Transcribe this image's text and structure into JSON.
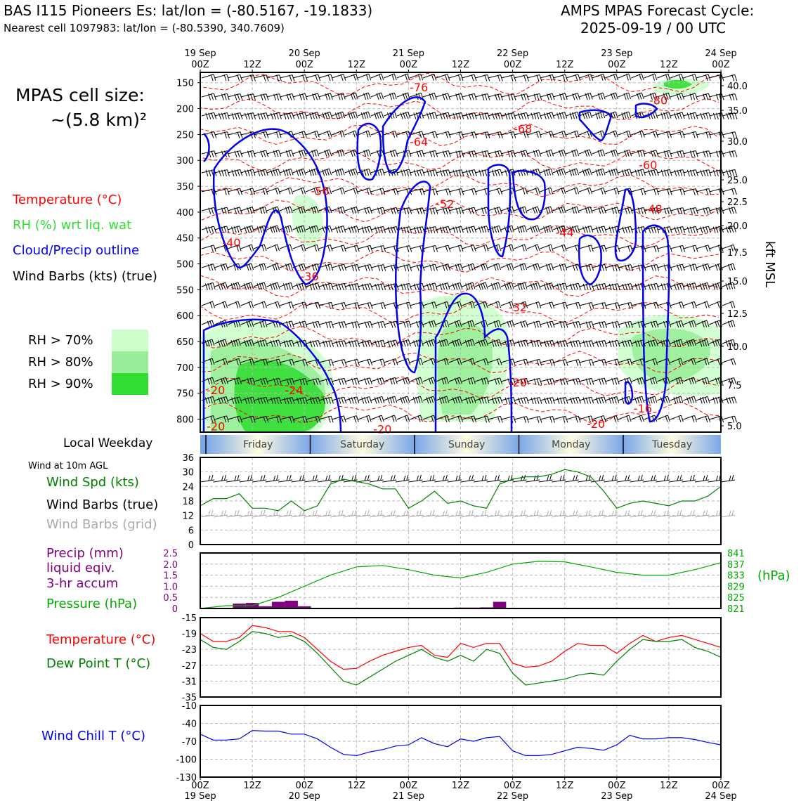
{
  "header": {
    "station": "BAS I115 Pioneers Es: lat/lon = (-80.5167, -19.1833)",
    "nearest": "Nearest cell 1097983: lat/lon = (-80.5390, 340.7609)",
    "cycle_title": "AMPS MPAS Forecast Cycle:",
    "cycle_time": "2025-09-19 / 00 UTC"
  },
  "left_legend": {
    "cell_size_1": "MPAS cell size:",
    "cell_size_2": "~(5.8 km)²",
    "temperature": "Temperature (°C)",
    "rh": "RH (%) wrt liq. wat",
    "cloud": "Cloud/Precip outline",
    "barbs": "Wind Barbs (kts) (true)",
    "rh70": "RH > 70%",
    "rh80": "RH > 80%",
    "rh90": "RH > 90%",
    "local_weekday": "Local Weekday",
    "wind10m": "Wind at 10m AGL",
    "wind_spd": "Wind Spd (kts)",
    "wind_barbs_true": "Wind Barbs (true)",
    "wind_barbs_grid": "Wind Barbs (grid)",
    "precip1": "Precip (mm)",
    "precip2": "liquid eqiv.",
    "precip3": "3-hr accum",
    "pressure": "Pressure (hPa)",
    "hpa_unit": "(hPa)",
    "temp2": "Temperature (°C)",
    "dew": "Dew Point T (°C)",
    "chill": "Wind Chill T (°C)",
    "kft": "kft MSL"
  },
  "colors": {
    "temp": "#ff0000",
    "rh": "#33dd33",
    "cloud": "#0000ee",
    "precip": "#800080",
    "pressure": "#00aa00",
    "dew": "#008000",
    "chill": "#0000ee",
    "rh70": "#ccffcc",
    "rh80": "#99ee99",
    "rh90": "#33dd33"
  },
  "chart_data": [
    {
      "type": "heatmap",
      "name": "time-height cross section",
      "x_ticks_top": [
        {
          "l1": "19 Sep",
          "l2": "00Z"
        },
        {
          "l1": "",
          "l2": "12Z"
        },
        {
          "l1": "20 Sep",
          "l2": "00Z"
        },
        {
          "l1": "",
          "l2": "12Z"
        },
        {
          "l1": "21 Sep",
          "l2": "00Z"
        },
        {
          "l1": "",
          "l2": "12Z"
        },
        {
          "l1": "22 Sep",
          "l2": "00Z"
        },
        {
          "l1": "",
          "l2": "12Z"
        },
        {
          "l1": "23 Sep",
          "l2": "00Z"
        },
        {
          "l1": "",
          "l2": "12Z"
        },
        {
          "l1": "24 Sep",
          "l2": "00Z"
        }
      ],
      "pressure_ticks": [
        "150",
        "200",
        "250",
        "300",
        "350",
        "400",
        "450",
        "500",
        "550",
        "600",
        "650",
        "700",
        "750",
        "800"
      ],
      "kft_ticks": [
        "40.0",
        "35.0",
        "30.0",
        "25.0",
        "22.5",
        "20.0",
        "17.5",
        "15.0",
        "12.5",
        "10.0",
        "7.5",
        "5.0"
      ],
      "temp_labels": [
        {
          "t": "-76",
          "h": 42,
          "p": 160
        },
        {
          "t": "-68",
          "h": 62,
          "p": 240
        },
        {
          "t": "-64",
          "h": 42,
          "p": 265
        },
        {
          "t": "-60",
          "h": 86,
          "p": 310
        },
        {
          "t": "-56",
          "h": 23,
          "p": 360
        },
        {
          "t": "-52",
          "h": 47,
          "p": 385
        },
        {
          "t": "-48",
          "h": 87,
          "p": 395
        },
        {
          "t": "-44",
          "h": 70,
          "p": 440
        },
        {
          "t": "-40",
          "h": 6,
          "p": 460
        },
        {
          "t": "-36",
          "h": 21,
          "p": 525
        },
        {
          "t": "-32",
          "h": 61,
          "p": 585
        },
        {
          "t": "-24",
          "h": 18,
          "p": 745
        },
        {
          "t": "-20",
          "h": 3,
          "p": 745
        },
        {
          "t": "-20",
          "h": 61,
          "p": 730
        },
        {
          "t": "-20",
          "h": 76,
          "p": 810
        },
        {
          "t": "-16",
          "h": 85,
          "p": 780
        },
        {
          "t": "-20",
          "h": 3,
          "p": 815
        },
        {
          "t": "-20",
          "h": 35,
          "p": 820
        },
        {
          "t": "-80",
          "h": 88,
          "p": 185
        }
      ],
      "weekdays": [
        "Friday",
        "Saturday",
        "Sunday",
        "Monday",
        "Tuesday"
      ]
    },
    {
      "type": "line",
      "name": "10m wind speed",
      "ylim": [
        0,
        36
      ],
      "yticks": [
        "0",
        "6",
        "12",
        "18",
        "24",
        "30",
        "36"
      ],
      "x_hours": [
        0,
        3,
        6,
        9,
        12,
        15,
        18,
        21,
        24,
        27,
        30,
        33,
        36,
        39,
        42,
        45,
        48,
        51,
        54,
        57,
        60,
        63,
        66,
        69,
        72,
        75,
        78,
        81,
        84,
        87,
        90,
        93,
        96,
        99,
        102,
        105,
        108,
        111,
        114,
        117,
        120
      ],
      "values": [
        16,
        19,
        19,
        21,
        15,
        15,
        14,
        18,
        14,
        16,
        25,
        27,
        26,
        25,
        23,
        23,
        15,
        18,
        22,
        17,
        18,
        16,
        15,
        25,
        27,
        28,
        28,
        29,
        31,
        30,
        28,
        22,
        15,
        17,
        18,
        17,
        16,
        18,
        18,
        20,
        24
      ]
    },
    {
      "type": "bar",
      "name": "precip and pressure",
      "ylim_precip": [
        0,
        2.5
      ],
      "yticks_precip": [
        "0",
        "0.5",
        "1.0",
        "1.5",
        "2.0",
        "2.5"
      ],
      "yticks_pressure": [
        "821",
        "825",
        "829",
        "833",
        "837",
        "841"
      ],
      "precip_hours": [
        9,
        12,
        15,
        18,
        21,
        24,
        60,
        63,
        66,
        69
      ],
      "precip_values": [
        0.22,
        0.25,
        0.1,
        0.3,
        0.35,
        0.1,
        0.04,
        0.04,
        0.05,
        0.3
      ],
      "pressure_x": [
        0,
        6,
        12,
        18,
        24,
        30,
        36,
        42,
        48,
        54,
        60,
        66,
        72,
        78,
        84,
        90,
        96,
        102,
        108,
        114,
        120
      ],
      "pressure_values": [
        821,
        822,
        822,
        825,
        829,
        833,
        836,
        836.5,
        835,
        833,
        832,
        834,
        837,
        838,
        837.8,
        836,
        834,
        833,
        833,
        835,
        837.5
      ]
    },
    {
      "type": "line",
      "name": "temperature and dew point",
      "ylim": [
        -35,
        -15
      ],
      "yticks": [
        "-15",
        "-19",
        "-23",
        "-27",
        "-31",
        "-35"
      ],
      "x_hours": [
        0,
        3,
        6,
        9,
        12,
        15,
        18,
        21,
        24,
        27,
        30,
        33,
        36,
        39,
        42,
        45,
        48,
        51,
        54,
        57,
        60,
        63,
        66,
        69,
        72,
        75,
        78,
        81,
        84,
        87,
        90,
        93,
        96,
        99,
        102,
        105,
        108,
        111,
        114,
        117,
        120
      ],
      "temp": [
        -19,
        -21,
        -21,
        -20,
        -17,
        -17.5,
        -18.5,
        -18.5,
        -20,
        -23,
        -26,
        -28,
        -27.8,
        -26,
        -24.5,
        -23.5,
        -22.5,
        -22,
        -24.5,
        -25,
        -21.5,
        -22.5,
        -21.5,
        -21.5,
        -26.5,
        -27.5,
        -27.2,
        -26,
        -23.5,
        -21.5,
        -22,
        -22,
        -24,
        -21.5,
        -19.5,
        -21,
        -20,
        -19.5,
        -20.5,
        -21.5,
        -22.5
      ],
      "dew": [
        -20.5,
        -22.5,
        -23,
        -21,
        -18.5,
        -19,
        -20,
        -19.5,
        -21,
        -24,
        -27.5,
        -31,
        -32,
        -30,
        -28,
        -26,
        -24.5,
        -23,
        -25,
        -26,
        -24.5,
        -26,
        -23,
        -24,
        -29,
        -32,
        -31.5,
        -31,
        -30.5,
        -29.5,
        -29,
        -29.5,
        -26,
        -23,
        -20.5,
        -21,
        -21,
        -20.5,
        -22.5,
        -23.5,
        -25
      ]
    },
    {
      "type": "line",
      "name": "wind chill",
      "ylim": [
        -130,
        -10
      ],
      "yticks": [
        "-10",
        "-40",
        "-70",
        "-100",
        "-130"
      ],
      "x_hours": [
        0,
        3,
        6,
        9,
        12,
        15,
        18,
        21,
        24,
        27,
        30,
        33,
        36,
        39,
        42,
        45,
        48,
        51,
        54,
        57,
        60,
        63,
        66,
        69,
        72,
        75,
        78,
        81,
        84,
        87,
        90,
        93,
        96,
        99,
        102,
        105,
        108,
        111,
        114,
        117,
        120
      ],
      "values": [
        -58,
        -68,
        -68,
        -66,
        -52,
        -53,
        -53,
        -58,
        -58,
        -66,
        -80,
        -92,
        -94,
        -88,
        -84,
        -78,
        -76,
        -64,
        -74,
        -79,
        -66,
        -70,
        -64,
        -62,
        -86,
        -94,
        -94,
        -92,
        -86,
        -80,
        -82,
        -85,
        -76,
        -60,
        -66,
        -66,
        -64,
        -64,
        -67,
        -72,
        -76
      ]
    },
    {
      "type": "axis",
      "name": "bottom time axis",
      "x_ticks_bottom": [
        {
          "l1": "00Z",
          "l2": "19 Sep"
        },
        {
          "l1": "12Z",
          "l2": ""
        },
        {
          "l1": "00Z",
          "l2": "20 Sep"
        },
        {
          "l1": "12Z",
          "l2": ""
        },
        {
          "l1": "00Z",
          "l2": "21 Sep"
        },
        {
          "l1": "12Z",
          "l2": ""
        },
        {
          "l1": "00Z",
          "l2": "22 Sep"
        },
        {
          "l1": "12Z",
          "l2": ""
        },
        {
          "l1": "00Z",
          "l2": "23 Sep"
        },
        {
          "l1": "12Z",
          "l2": ""
        },
        {
          "l1": "00Z",
          "l2": "24 Sep"
        }
      ]
    }
  ]
}
